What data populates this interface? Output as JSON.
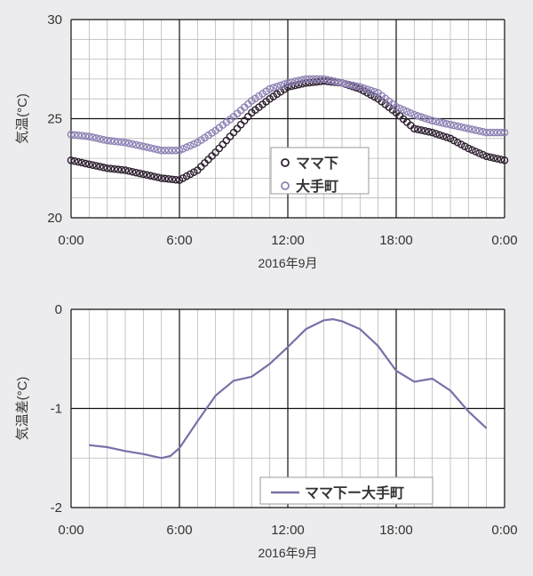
{
  "chart_data": [
    {
      "type": "scatter",
      "xlabel": "2016年9月",
      "ylabel": "気温(°C)",
      "ylim": [
        20,
        30
      ],
      "yticks": [
        "20",
        "25",
        "30"
      ],
      "xticks": [
        "0:00",
        "6:00",
        "12:00",
        "18:00",
        "0:00"
      ],
      "xlim_hours": [
        0,
        24
      ],
      "legend": "center",
      "grid": true,
      "series": [
        {
          "name": "ママ下",
          "color": "#2e2030",
          "marker": "open-circle",
          "x": [
            0,
            1,
            2,
            3,
            4,
            5,
            6,
            7,
            8,
            9,
            10,
            11,
            12,
            13,
            14,
            15,
            16,
            17,
            18,
            19,
            20,
            21,
            22,
            23,
            24
          ],
          "y": [
            22.9,
            22.7,
            22.5,
            22.4,
            22.2,
            22.0,
            21.9,
            22.4,
            23.3,
            24.3,
            25.3,
            26.0,
            26.6,
            26.8,
            26.9,
            26.8,
            26.5,
            26.0,
            25.3,
            24.5,
            24.3,
            24.0,
            23.5,
            23.1,
            22.9
          ]
        },
        {
          "name": "大手町",
          "color": "#8f82b4",
          "marker": "open-circle",
          "x": [
            0,
            1,
            2,
            3,
            4,
            5,
            6,
            7,
            8,
            9,
            10,
            11,
            12,
            13,
            14,
            15,
            16,
            17,
            18,
            19,
            20,
            21,
            22,
            23,
            24
          ],
          "y": [
            24.2,
            24.1,
            23.9,
            23.8,
            23.6,
            23.4,
            23.4,
            23.8,
            24.4,
            25.1,
            25.9,
            26.5,
            26.8,
            27.0,
            27.0,
            26.8,
            26.6,
            26.3,
            25.6,
            25.2,
            24.9,
            24.7,
            24.5,
            24.3,
            24.3
          ]
        }
      ]
    },
    {
      "type": "line",
      "xlabel": "2016年9月",
      "ylabel": "気温差(°C)",
      "ylim": [
        -2,
        0
      ],
      "yticks": [
        "-2",
        "-1",
        "0"
      ],
      "xticks": [
        "0:00",
        "6:00",
        "12:00",
        "18:00",
        "0:00"
      ],
      "xlim_hours": [
        0,
        24
      ],
      "legend": "bottom-center",
      "grid": true,
      "series": [
        {
          "name": "ママ下ー大手町",
          "color": "#7c6fa8",
          "x": [
            1,
            2,
            3,
            4,
            5,
            5.5,
            6,
            7,
            8,
            9,
            10,
            11,
            12,
            13,
            14,
            14.5,
            15,
            16,
            17,
            18,
            19,
            20,
            21,
            22,
            23
          ],
          "y": [
            -1.37,
            -1.39,
            -1.43,
            -1.46,
            -1.5,
            -1.48,
            -1.4,
            -1.13,
            -0.87,
            -0.72,
            -0.68,
            -0.55,
            -0.38,
            -0.2,
            -0.11,
            -0.1,
            -0.12,
            -0.2,
            -0.37,
            -0.62,
            -0.73,
            -0.7,
            -0.82,
            -1.03,
            -1.2
          ]
        }
      ]
    }
  ]
}
